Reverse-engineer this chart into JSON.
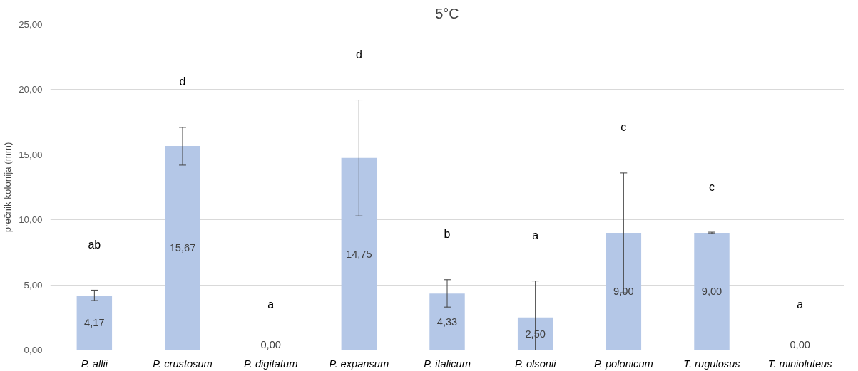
{
  "chart_data": {
    "type": "bar",
    "title": "5°C",
    "ylabel": "prečnik kolonija (mm)",
    "categories": [
      "P. allii",
      "P. crustosum",
      "P. digitatum",
      "P. expansum",
      "P. italicum",
      "P. olsonii",
      "P. polonicum",
      "T. rugulosus",
      "T. minioluteus"
    ],
    "values": [
      4.17,
      15.67,
      0.0,
      14.75,
      4.33,
      2.5,
      9.0,
      9.0,
      0.0
    ],
    "value_labels": [
      "4,17",
      "15,67",
      "0,00",
      "14,75",
      "4,33",
      "2,50",
      "9,00",
      "9,00",
      "0,00"
    ],
    "errors": [
      [
        3.8,
        4.6
      ],
      [
        14.2,
        17.1
      ],
      null,
      [
        10.3,
        19.2
      ],
      [
        3.3,
        5.4
      ],
      [
        0.0,
        5.3
      ],
      [
        4.4,
        13.6
      ],
      [
        8.95,
        9.05
      ],
      null
    ],
    "color": "#b4c7e7",
    "ylim": [
      0,
      25
    ],
    "yticks": [
      {
        "value": 0,
        "label": "0,00"
      },
      {
        "value": 5,
        "label": "5,00"
      },
      {
        "value": 10,
        "label": "10,00"
      },
      {
        "value": 15,
        "label": "15,00"
      },
      {
        "value": 20,
        "label": "20,00"
      },
      {
        "value": 25,
        "label": "25,00"
      }
    ],
    "grid": "y",
    "annotations": [
      "ab",
      "d",
      "a",
      "d",
      "b",
      "a",
      "c",
      "c",
      "a"
    ]
  }
}
